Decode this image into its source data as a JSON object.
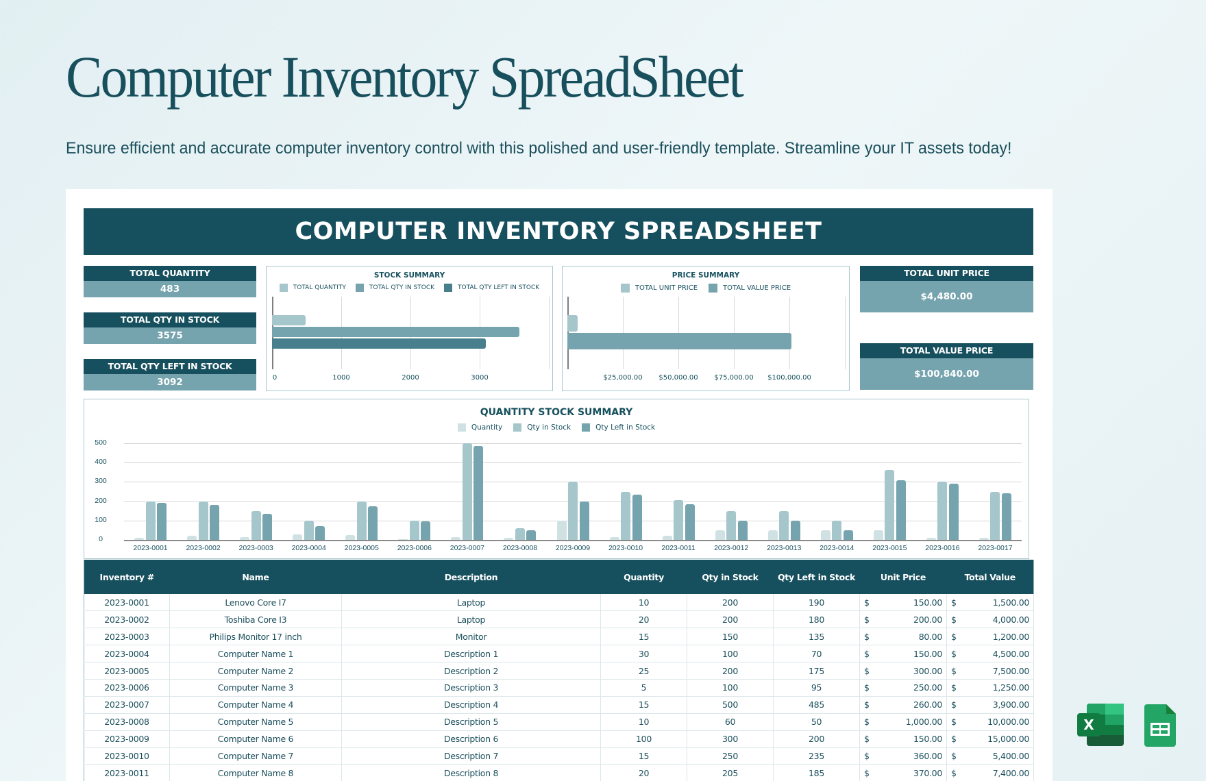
{
  "header": {
    "title": "Computer Inventory SpreadSheet",
    "subtitle": "Ensure efficient and accurate computer inventory control with this polished and user-friendly template. Streamline your IT assets today!"
  },
  "sheet": {
    "banner": "COMPUTER INVENTORY SPREADSHEET",
    "kpis_left": [
      {
        "label": "TOTAL QUANTITY",
        "value": "483"
      },
      {
        "label": "TOTAL QTY IN STOCK",
        "value": "3575"
      },
      {
        "label": "TOTAL QTY LEFT IN STOCK",
        "value": "3092"
      }
    ],
    "kpis_right": [
      {
        "label": "TOTAL UNIT PRICE",
        "value": "$4,480.00"
      },
      {
        "label": "TOTAL VALUE PRICE",
        "value": "$100,840.00"
      }
    ]
  },
  "colors": {
    "dark_teal": "#164f5d",
    "mid_teal": "#76a4ae",
    "light_teal": "#a5c6cb",
    "pale_teal": "#d0e1e4",
    "bar_dark": "#487f8c",
    "bar_mid": "#76a4ae",
    "excel_green": "#1d6f42",
    "sheets_green": "#23a566"
  },
  "chart_data": [
    {
      "type": "bar",
      "orientation": "horizontal",
      "title": "STOCK SUMMARY",
      "legend": [
        "TOTAL QUANTITY",
        "TOTAL QTY IN STOCK",
        "TOTAL QTY LEFT IN STOCK"
      ],
      "series": [
        {
          "name": "TOTAL QUANTITY",
          "values": [
            483
          ],
          "color": "#a5c6cb"
        },
        {
          "name": "TOTAL QTY IN STOCK",
          "values": [
            3575
          ],
          "color": "#76a4ae"
        },
        {
          "name": "TOTAL QTY LEFT IN STOCK",
          "values": [
            3092
          ],
          "color": "#487f8c"
        }
      ],
      "xticks": [
        "0",
        "1000",
        "2000",
        "3000"
      ],
      "xlim": [
        0,
        4000
      ],
      "grid": true
    },
    {
      "type": "bar",
      "orientation": "horizontal",
      "title": "PRICE SUMMARY",
      "legend": [
        "TOTAL UNIT PRICE",
        "TOTAL VALUE PRICE"
      ],
      "series": [
        {
          "name": "TOTAL UNIT PRICE",
          "values": [
            4480
          ],
          "color": "#a5c6cb"
        },
        {
          "name": "TOTAL VALUE PRICE",
          "values": [
            100840
          ],
          "color": "#76a4ae"
        }
      ],
      "xticks": [
        "$25,000.00",
        "$50,000.00",
        "$75,000.00",
        "$100,000.00"
      ],
      "xlim": [
        0,
        125000
      ],
      "grid": true
    },
    {
      "type": "bar",
      "orientation": "vertical",
      "title": "QUANTITY STOCK SUMMARY",
      "legend": [
        "Quantity",
        "Qty in Stock",
        "Qty Left in Stock"
      ],
      "categories": [
        "2023-0001",
        "2023-0002",
        "2023-0003",
        "2023-0004",
        "2023-0005",
        "2023-0006",
        "2023-0007",
        "2023-0008",
        "2023-0009",
        "2023-0010",
        "2023-0011",
        "2023-0012",
        "2023-0013",
        "2023-0014",
        "2023-0015",
        "2023-0016",
        "2023-0017"
      ],
      "series": [
        {
          "name": "Quantity",
          "color": "#d0e1e4",
          "values": [
            10,
            20,
            15,
            30,
            25,
            5,
            15,
            10,
            100,
            15,
            20,
            50,
            50,
            50,
            50,
            10,
            10
          ]
        },
        {
          "name": "Qty in Stock",
          "color": "#a5c6cb",
          "values": [
            200,
            200,
            150,
            100,
            200,
            100,
            500,
            60,
            300,
            250,
            205,
            150,
            150,
            100,
            360,
            300,
            250
          ]
        },
        {
          "name": "Qty Left in Stock",
          "color": "#76a4ae",
          "values": [
            190,
            180,
            135,
            70,
            175,
            95,
            485,
            50,
            200,
            235,
            185,
            100,
            100,
            50,
            310,
            290,
            240
          ]
        }
      ],
      "yticks": [
        "0",
        "100",
        "200",
        "300",
        "400",
        "500"
      ],
      "ylim": [
        0,
        500
      ],
      "grid": true
    }
  ],
  "table": {
    "columns": [
      "Inventory #",
      "Name",
      "Description",
      "Quantity",
      "Qty in Stock",
      "Qty Left in Stock",
      "Unit Price",
      "Total Value"
    ],
    "currency_symbol": "$",
    "rows": [
      {
        "id": "2023-0001",
        "name": "Lenovo Core I7",
        "desc": "Laptop",
        "qty": "10",
        "stock": "200",
        "left": "190",
        "unit": "150.00",
        "total": "1,500.00"
      },
      {
        "id": "2023-0002",
        "name": "Toshiba Core I3",
        "desc": "Laptop",
        "qty": "20",
        "stock": "200",
        "left": "180",
        "unit": "200.00",
        "total": "4,000.00"
      },
      {
        "id": "2023-0003",
        "name": "Philips Monitor 17 inch",
        "desc": "Monitor",
        "qty": "15",
        "stock": "150",
        "left": "135",
        "unit": "80.00",
        "total": "1,200.00"
      },
      {
        "id": "2023-0004",
        "name": "Computer Name 1",
        "desc": "Description 1",
        "qty": "30",
        "stock": "100",
        "left": "70",
        "unit": "150.00",
        "total": "4,500.00"
      },
      {
        "id": "2023-0005",
        "name": "Computer Name 2",
        "desc": "Description 2",
        "qty": "25",
        "stock": "200",
        "left": "175",
        "unit": "300.00",
        "total": "7,500.00"
      },
      {
        "id": "2023-0006",
        "name": "Computer Name 3",
        "desc": "Description 3",
        "qty": "5",
        "stock": "100",
        "left": "95",
        "unit": "250.00",
        "total": "1,250.00"
      },
      {
        "id": "2023-0007",
        "name": "Computer Name 4",
        "desc": "Description 4",
        "qty": "15",
        "stock": "500",
        "left": "485",
        "unit": "260.00",
        "total": "3,900.00"
      },
      {
        "id": "2023-0008",
        "name": "Computer Name 5",
        "desc": "Description 5",
        "qty": "10",
        "stock": "60",
        "left": "50",
        "unit": "1,000.00",
        "total": "10,000.00"
      },
      {
        "id": "2023-0009",
        "name": "Computer Name 6",
        "desc": "Description 6",
        "qty": "100",
        "stock": "300",
        "left": "200",
        "unit": "150.00",
        "total": "15,000.00"
      },
      {
        "id": "2023-0010",
        "name": "Computer Name 7",
        "desc": "Description 7",
        "qty": "15",
        "stock": "250",
        "left": "235",
        "unit": "360.00",
        "total": "5,400.00"
      },
      {
        "id": "2023-0011",
        "name": "Computer Name 8",
        "desc": "Description 8",
        "qty": "20",
        "stock": "205",
        "left": "185",
        "unit": "370.00",
        "total": "7,400.00"
      }
    ]
  },
  "app_icons": [
    {
      "name": "excel-icon",
      "label": "X"
    },
    {
      "name": "google-sheets-icon"
    }
  ]
}
